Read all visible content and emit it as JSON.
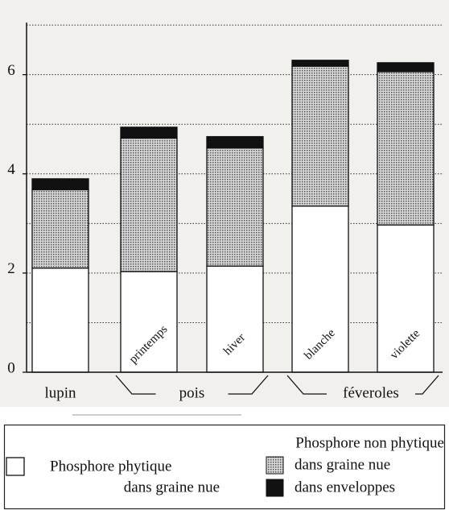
{
  "chart_data": {
    "type": "stacked_bar",
    "categories": [
      "lupin",
      "printemps",
      "hiver",
      "blanche",
      "violette"
    ],
    "groups": [
      {
        "label": "pois",
        "span": [
          1,
          2
        ]
      },
      {
        "label": "féveroles",
        "span": [
          3,
          4
        ]
      }
    ],
    "series": [
      {
        "name": "Phosphore phytique",
        "sublabel": "dans graine nue",
        "color": "#ffffff",
        "values": [
          2.1,
          2.03,
          2.14,
          3.35,
          2.97
        ]
      },
      {
        "name": "dans graine nue",
        "legend_group": "Phosphore non phytique",
        "color": "#9a9a9a",
        "pattern": "dots",
        "values": [
          1.58,
          2.69,
          2.38,
          2.82,
          3.09
        ]
      },
      {
        "name": "dans enveloppes",
        "legend_group": "Phosphore non phytique",
        "color": "#111111",
        "values": [
          0.22,
          0.22,
          0.23,
          0.12,
          0.18
        ]
      }
    ],
    "ylim": [
      0,
      7.05
    ],
    "yticks": [
      0,
      2,
      4,
      6
    ],
    "grid_step": 1,
    "grid": true
  }
}
